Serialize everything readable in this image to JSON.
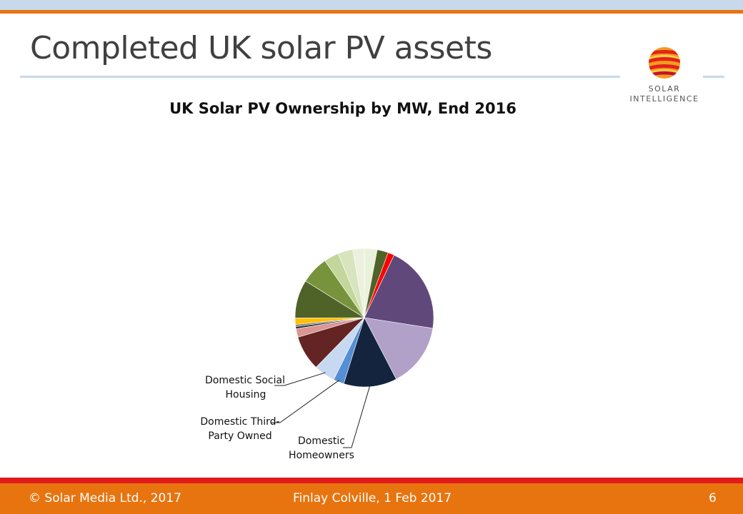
{
  "header": {
    "title": "Completed UK solar PV assets"
  },
  "logo": {
    "line1": "SOLAR",
    "line2": "INTELLIGENCE"
  },
  "footer": {
    "copyright": "© Solar Media Ltd., 2017",
    "author_date": "Finlay Colville, 1 Feb 2017",
    "page_number": "6"
  },
  "chart_data": {
    "type": "pie",
    "title": "UK Solar PV Ownership by MW, End 2016",
    "start_angle_deg": 0,
    "direction": "clockwise",
    "slices": [
      {
        "label": "",
        "value": 3.0,
        "color": "#e9f1d9"
      },
      {
        "label": "",
        "value": 2.6,
        "color": "#4f6228"
      },
      {
        "label": "",
        "value": 1.5,
        "color": "#ff0000"
      },
      {
        "label": "",
        "value": 20.5,
        "color": "#60497a"
      },
      {
        "label": "",
        "value": 15.0,
        "color": "#b1a0c7"
      },
      {
        "label": "Domestic Homeowners",
        "value": 12.5,
        "color": "#14243f"
      },
      {
        "label": "Domestic Third-Party Owned",
        "value": 2.5,
        "color": "#558ed5"
      },
      {
        "label": "Domestic Social Housing",
        "value": 5.0,
        "color": "#c6d9f1"
      },
      {
        "label": "",
        "value": 8.2,
        "color": "#632423"
      },
      {
        "label": "",
        "value": 2.0,
        "color": "#d99694"
      },
      {
        "label": "",
        "value": 0.5,
        "color": "#262626"
      },
      {
        "label": "",
        "value": 0.5,
        "color": "#7f7f7f"
      },
      {
        "label": "",
        "value": 1.5,
        "color": "#ffc000"
      },
      {
        "label": "",
        "value": 9.0,
        "color": "#4f6228"
      },
      {
        "label": "",
        "value": 6.5,
        "color": "#77933c"
      },
      {
        "label": "",
        "value": 3.5,
        "color": "#c3d69b"
      },
      {
        "label": "",
        "value": 3.5,
        "color": "#d7e4bd"
      },
      {
        "label": "",
        "value": 2.7,
        "color": "#ebf1de"
      }
    ],
    "callouts": [
      {
        "line1": "Domestic Social",
        "line2": "Housing",
        "slice_label": "Domestic Social Housing"
      },
      {
        "line1": "Domestic Third-",
        "line2": "Party Owned",
        "slice_label": "Domestic Third-Party Owned"
      },
      {
        "line1": "Domestic",
        "line2": "Homeowners",
        "slice_label": "Domestic Homeowners"
      }
    ]
  }
}
